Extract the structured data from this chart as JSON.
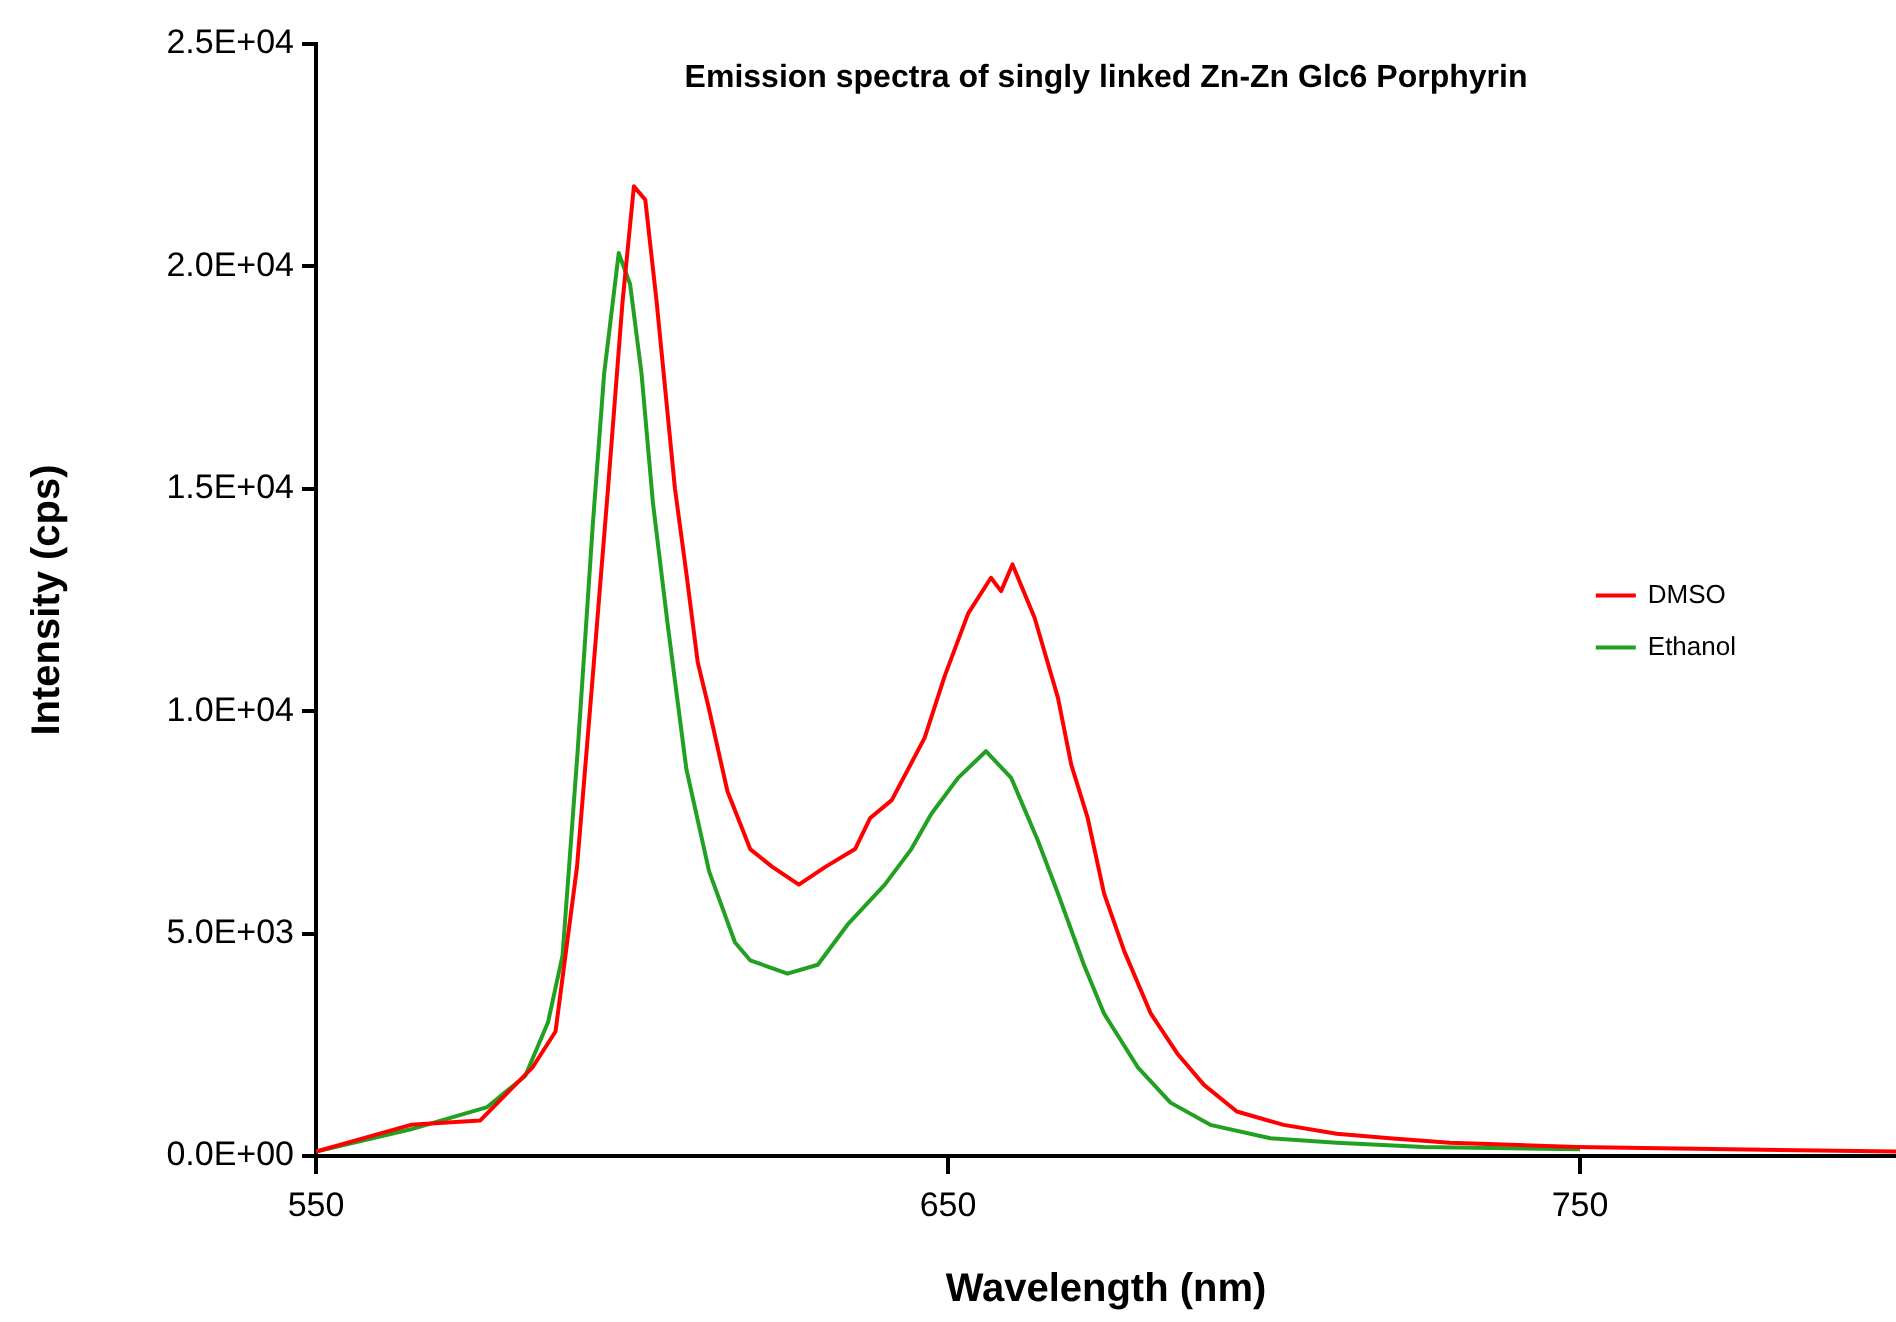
{
  "chart_data": {
    "type": "line",
    "title": "Emission spectra of singly linked Zn-Zn Glc6 Porphyrin",
    "xlabel": "Wavelength (nm)",
    "ylabel": "Intensity (cps)",
    "xlim": [
      550,
      800
    ],
    "xticks": [
      550,
      650,
      750
    ],
    "ylim": [
      0,
      25000
    ],
    "yticks": [
      {
        "value": 0,
        "label": "0.0E+00"
      },
      {
        "value": 5000,
        "label": "5.0E+03"
      },
      {
        "value": 10000,
        "label": "1.0E+04"
      },
      {
        "value": 15000,
        "label": "1.5E+04"
      },
      {
        "value": 20000,
        "label": "2.0E+04"
      },
      {
        "value": 25000,
        "label": "2.5E+04"
      }
    ],
    "grid": false,
    "legend": "right",
    "marker": "none",
    "line_style": "solid",
    "series": [
      {
        "name": "DMSO",
        "color": "#ff0000",
        "x": [
          550,
          565,
          576,
          584.3,
          587.9,
          591.3,
          593.8,
          596.2,
          598.5,
          600.3,
          602.1,
          603.9,
          606.8,
          608.6,
          610.4,
          612.1,
          615.1,
          618.7,
          622.2,
          626.4,
          630.6,
          635.3,
          637.7,
          641.1,
          646.3,
          649.5,
          653.2,
          656.8,
          658.4,
          660.2,
          663.7,
          667.4,
          669.5,
          672.1,
          674.7,
          677.9,
          682.1,
          686.3,
          690.5,
          695.7,
          703.1,
          711.5,
          719.9,
          729.4,
          749.4,
          800
        ],
        "values": [
          100,
          700,
          800,
          2000,
          2800,
          6500,
          10800,
          15000,
          19200,
          21800,
          21500,
          19200,
          15000,
          13100,
          11100,
          10100,
          8200,
          6900,
          6500,
          6100,
          6500,
          6900,
          7600,
          8000,
          9400,
          10800,
          12200,
          13000,
          12700,
          13300,
          12100,
          10300,
          8800,
          7600,
          5900,
          4600,
          3200,
          2300,
          1600,
          1000,
          700,
          500,
          400,
          300,
          200,
          100
        ]
      },
      {
        "name": "Ethanol",
        "color": "#22a022",
        "x": [
          550,
          565,
          577.1,
          583.1,
          586.7,
          589,
          591.4,
          593.8,
          595.6,
          597.9,
          599.7,
          601.5,
          603.3,
          605.6,
          608.6,
          612.2,
          616.3,
          618.7,
          624.6,
          629.4,
          634.1,
          640,
          644.2,
          647.4,
          651.6,
          656,
          660,
          664.2,
          667.4,
          671.5,
          674.7,
          680,
          685.2,
          691.5,
          701,
          711.5,
          725.2,
          750
        ],
        "values": [
          100,
          600,
          1100,
          1800,
          3000,
          4500,
          9100,
          14200,
          17600,
          20300,
          19600,
          17600,
          14700,
          12000,
          8700,
          6400,
          4800,
          4400,
          4100,
          4300,
          5200,
          6100,
          6900,
          7700,
          8500,
          9100,
          8500,
          7100,
          5900,
          4300,
          3200,
          2000,
          1200,
          700,
          400,
          300,
          200,
          150
        ]
      }
    ]
  }
}
